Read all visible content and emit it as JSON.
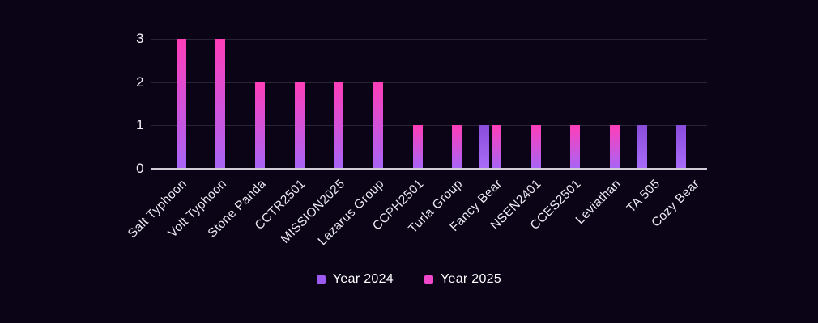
{
  "chart_data": {
    "type": "bar",
    "title": "",
    "xlabel": "",
    "ylabel": "",
    "ylim": [
      0,
      3
    ],
    "yticks": [
      0,
      1,
      2,
      3
    ],
    "grid": true,
    "legend_position": "bottom",
    "categories": [
      "Salt Typhoon",
      "Volt Typhoon",
      "Stone Panda",
      "CCTR2501",
      "MISSION2025",
      "Lazarus Group",
      "CCPH2501",
      "Turla Group",
      "Fancy Bear",
      "NSEN2401",
      "CCES2501",
      "Leviathan",
      "TA 505",
      "Cozy Bear"
    ],
    "series": [
      {
        "name": "Year 2024",
        "values": [
          0,
          0,
          0,
          0,
          0,
          0,
          0,
          0,
          1,
          0,
          0,
          0,
          1,
          1
        ],
        "marker_color": "#9d5af0",
        "gradient_top": "#8a4cdb",
        "gradient_bottom": "#a96df9"
      },
      {
        "name": "Year 2025",
        "values": [
          3,
          3,
          2,
          2,
          2,
          2,
          1,
          1,
          1,
          1,
          1,
          1,
          0,
          0
        ],
        "marker_color": "#ef48cb",
        "gradient_top": "#ff3eb8",
        "gradient_bottom": "#a765f6"
      }
    ]
  },
  "colors": {
    "background": "#0a0416",
    "gridline": "#272438",
    "axis_line": "#cfccd6",
    "y_tick_label": "#f2f0f6",
    "x_tick_label": "#eceaf2",
    "legend_text": "#ffffff"
  }
}
